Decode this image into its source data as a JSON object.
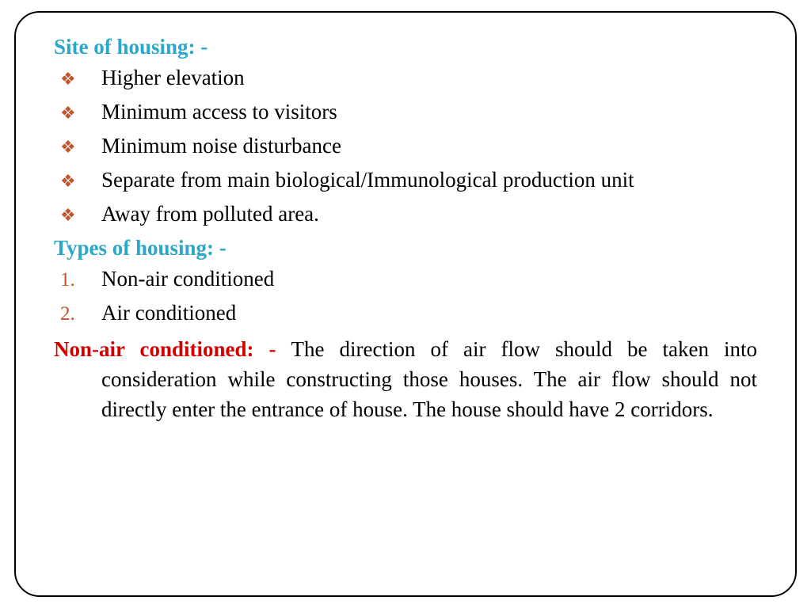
{
  "colors": {
    "heading": "#2aa7c9",
    "bullet_marker": "#c0562b",
    "number_marker": "#c0562b",
    "para_label": "#d40000",
    "body_text": "#000000",
    "frame_border": "#000000",
    "background": "#ffffff"
  },
  "typography": {
    "family": "Garamond, Georgia, 'Times New Roman', serif",
    "heading_size": 27,
    "body_size": 27,
    "heading_weight": "bold",
    "para_label_weight": "bold"
  },
  "layout": {
    "frame_radius": 32,
    "frame_border_width": 2,
    "bullet_indent": 60
  },
  "section1": {
    "heading": "Site of housing: -",
    "bullets": {
      "0": "Higher elevation",
      "1": "Minimum access to visitors",
      "2": "Minimum noise disturbance",
      "3": "Separate from main biological/Immunological production unit",
      "4": "Away from polluted area."
    }
  },
  "section2": {
    "heading": "Types of housing: -",
    "items": {
      "0": {
        "num": "1.",
        "text": "Non-air conditioned"
      },
      "1": {
        "num": "2.",
        "text": "Air conditioned"
      }
    }
  },
  "section3": {
    "label": "Non-air conditioned: - ",
    "body": "The direction of air flow should be taken into consideration while constructing those houses. The air flow should not directly enter the entrance of house. The house should have 2 corridors."
  },
  "bullet_glyph": "❖"
}
